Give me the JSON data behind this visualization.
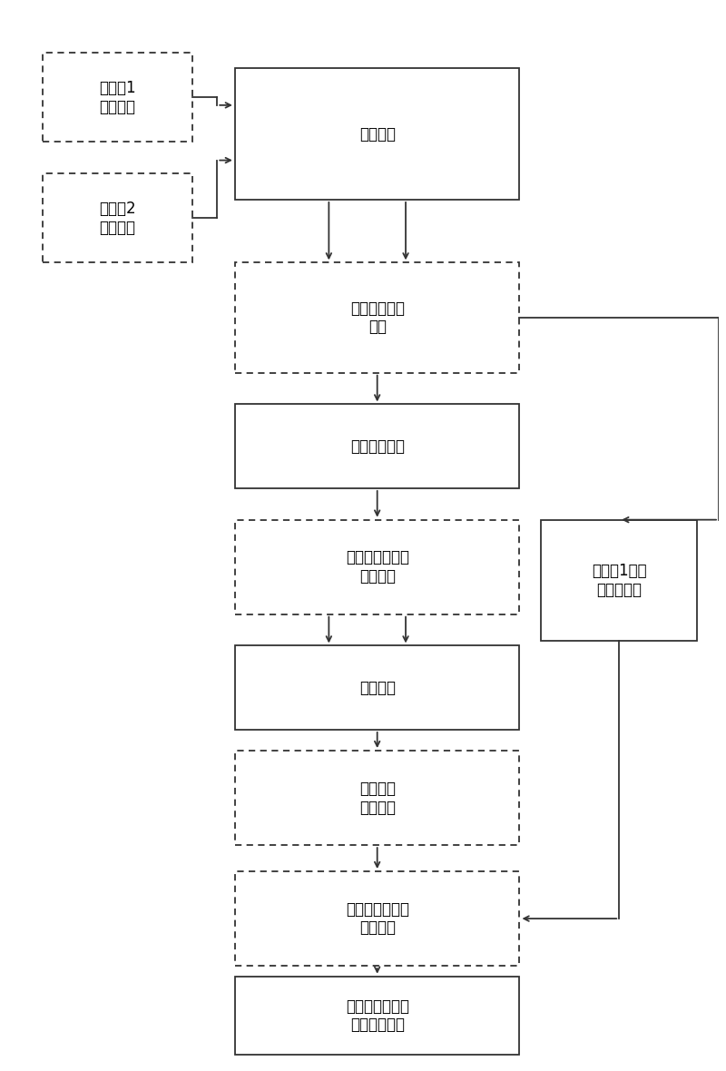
{
  "bg_color": "#ffffff",
  "fig_w": 8.0,
  "fig_h": 11.8,
  "dpi": 100,
  "font_size": 12,
  "boxes": {
    "mic1": [
      0.05,
      0.875,
      0.21,
      0.085,
      "麦克顴1\n接收信号",
      "dashed"
    ],
    "mic2": [
      0.05,
      0.76,
      0.21,
      0.085,
      "麦克顴2\n接收信号",
      "dashed"
    ],
    "delay": [
      0.32,
      0.82,
      0.4,
      0.125,
      "时延补偿",
      "solid"
    ],
    "frame": [
      0.32,
      0.655,
      0.4,
      0.105,
      "分帧、预加重\n加窗",
      "dashed"
    ],
    "cepstrum": [
      0.32,
      0.545,
      0.4,
      0.08,
      "变换到倒谱域",
      "solid"
    ],
    "calc_min": [
      0.32,
      0.425,
      0.4,
      0.09,
      "计算倒谱域最小\n相位分量",
      "dashed"
    ],
    "beamform": [
      0.32,
      0.315,
      0.4,
      0.08,
      "波束形成",
      "solid"
    ],
    "lowpass": [
      0.32,
      0.205,
      0.4,
      0.09,
      "低通滤波\n去除混响",
      "dashed"
    ],
    "freq_min": [
      0.32,
      0.09,
      0.4,
      0.09,
      "变换到频域最小\n相位分量",
      "dashed"
    ],
    "output": [
      0.32,
      0.005,
      0.4,
      0.075,
      "去除混响的频域\n初步降噪信号",
      "solid"
    ],
    "phase": [
      0.75,
      0.4,
      0.22,
      0.115,
      "麦克顴1信号\n的相位信息",
      "solid"
    ]
  }
}
